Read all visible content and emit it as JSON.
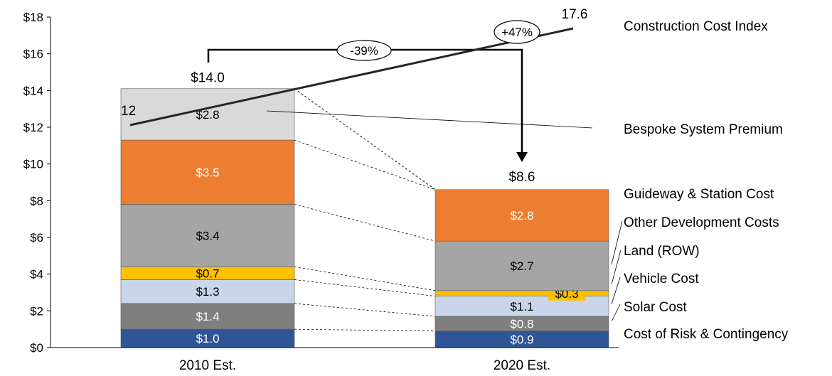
{
  "chart_data": {
    "type": "bar",
    "stacked": true,
    "categories": [
      "2010 Est.",
      "2020 Est."
    ],
    "ylim": [
      0,
      18
    ],
    "y_ticks": [
      "$0",
      "$2",
      "$4",
      "$6",
      "$8",
      "$10",
      "$12",
      "$14",
      "$16",
      "$18"
    ],
    "grid": false,
    "legend_placement": "right",
    "series": [
      {
        "name": "Cost of Risk & Contingency",
        "color": "#2f5597",
        "label_color": "#ffffff",
        "values": [
          1.0,
          0.9
        ],
        "labels": [
          "$1.0",
          "$0.9"
        ]
      },
      {
        "name": "Solar Cost",
        "color": "#7f7f7f",
        "label_color": "#ffffff",
        "values": [
          1.4,
          0.8
        ],
        "labels": [
          "$1.4",
          "$0.8"
        ]
      },
      {
        "name": "Vehicle Cost",
        "color": "#c9d5ea",
        "label_color": "#000000",
        "values": [
          1.3,
          1.1
        ],
        "labels": [
          "$1.3",
          "$1.1"
        ]
      },
      {
        "name": "Land (ROW)",
        "color": "#ffc000",
        "label_color": "#000000",
        "values": [
          0.7,
          0.3
        ],
        "labels": [
          "$0.7",
          "$0.3"
        ]
      },
      {
        "name": "Other Development Costs",
        "color": "#a5a5a5",
        "label_color": "#000000",
        "values": [
          3.4,
          2.7
        ],
        "labels": [
          "$3.4",
          "$2.7"
        ]
      },
      {
        "name": "Guideway & Station Cost",
        "color": "#ed7d31",
        "label_color": "#ffffff",
        "values": [
          3.5,
          2.8
        ],
        "labels": [
          "$3.5",
          "$2.8"
        ]
      },
      {
        "name": "Bespoke System Premium",
        "color": "#d9d9d9",
        "label_color": "#000000",
        "values": [
          2.8,
          0
        ],
        "labels": [
          "$2.8",
          ""
        ]
      }
    ],
    "totals": {
      "values": [
        14.0,
        8.6
      ],
      "labels": [
        "$14.0",
        "$8.6"
      ]
    },
    "line": {
      "name": "Construction Cost Index",
      "start": 12,
      "end": 17.6,
      "start_label": "12",
      "end_label": "17.6",
      "color": "#262626"
    },
    "annotations": {
      "decrease": "-39%",
      "increase": "+47%"
    }
  }
}
